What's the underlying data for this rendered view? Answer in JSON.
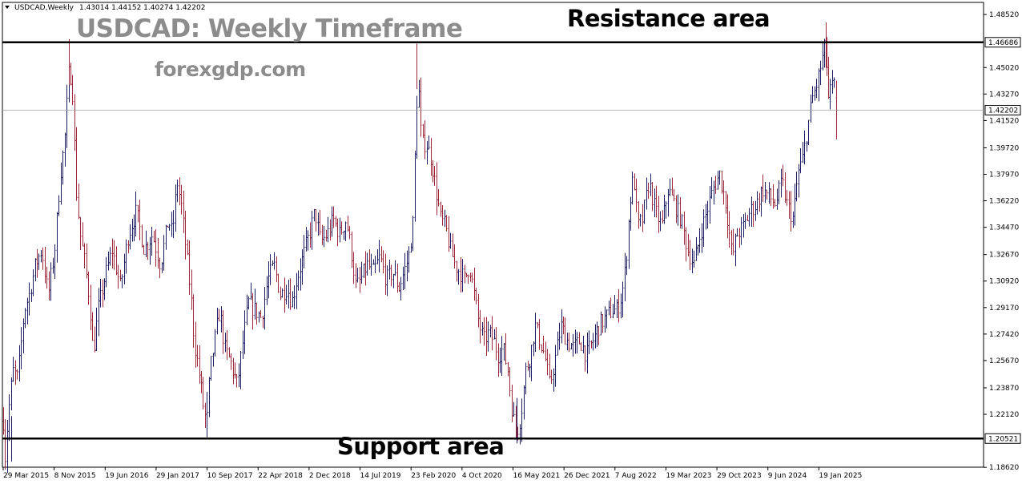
{
  "header": {
    "symbol": "USDCAD,Weekly",
    "ohlc": "1.43014 1.44152 1.40274 1.42202"
  },
  "annotations": {
    "title": "USDCAD: Weekly Timeframe",
    "website": "forexgdp.com",
    "resistance_label": "Resistance area",
    "support_label": "Support area"
  },
  "colors": {
    "up_bar": "#1e1e64",
    "down_bar": "#a0283c",
    "level_line": "#000000",
    "current_line": "#a0a0a0",
    "frame": "#000000",
    "text_gray": "#8c8c8c"
  },
  "chart_data": {
    "type": "ohlc",
    "title": "USDCAD: Weekly Timeframe",
    "xlabel": "",
    "ylabel": "",
    "ylim": [
      1.1863,
      1.4932
    ],
    "grid": false,
    "price_ticks": [
      "1.48520",
      "1.45020",
      "1.43270",
      "1.41520",
      "1.39720",
      "1.37970",
      "1.36220",
      "1.34470",
      "1.32670",
      "1.30920",
      "1.29170",
      "1.27420",
      "1.25670",
      "1.23870",
      "1.22120",
      "1.18620"
    ],
    "date_ticks": [
      "29 Mar 2015",
      "8 Nov 2015",
      "19 Jun 2016",
      "29 Jan 2017",
      "10 Sep 2017",
      "22 Apr 2018",
      "2 Dec 2018",
      "14 Jul 2019",
      "23 Feb 2020",
      "4 Oct 2020",
      "16 May 2021",
      "26 Dec 2021",
      "7 Aug 2022",
      "19 Mar 2023",
      "29 Oct 2023",
      "9 Jun 2024",
      "19 Jan 2025"
    ],
    "levels": [
      {
        "name": "Resistance area",
        "value": 1.46686,
        "label": "1.46686"
      },
      {
        "name": "Support area",
        "value": 1.20521,
        "label": "1.20521"
      }
    ],
    "current_price": {
      "value": 1.42202,
      "label": "1.42202"
    },
    "last_bar": {
      "open": 1.43014,
      "high": 1.44152,
      "low": 1.40274,
      "close": 1.42202
    },
    "path_points": [
      [
        0,
        1.28
      ],
      [
        3,
        1.23
      ],
      [
        6,
        1.19
      ],
      [
        10,
        1.22
      ],
      [
        16,
        1.25
      ],
      [
        22,
        1.245
      ],
      [
        30,
        1.29
      ],
      [
        36,
        1.3
      ],
      [
        44,
        1.32
      ],
      [
        52,
        1.33
      ],
      [
        60,
        1.3
      ],
      [
        68,
        1.33
      ],
      [
        75,
        1.38
      ],
      [
        80,
        1.4
      ],
      [
        86,
        1.45
      ],
      [
        90,
        1.44
      ],
      [
        95,
        1.37
      ],
      [
        100,
        1.34
      ],
      [
        106,
        1.32
      ],
      [
        112,
        1.295
      ],
      [
        116,
        1.26
      ],
      [
        122,
        1.29
      ],
      [
        130,
        1.31
      ],
      [
        140,
        1.33
      ],
      [
        150,
        1.305
      ],
      [
        160,
        1.34
      ],
      [
        170,
        1.355
      ],
      [
        180,
        1.33
      ],
      [
        190,
        1.34
      ],
      [
        200,
        1.32
      ],
      [
        210,
        1.35
      ],
      [
        215,
        1.34
      ],
      [
        221,
        1.375
      ],
      [
        226,
        1.36
      ],
      [
        232,
        1.33
      ],
      [
        238,
        1.3
      ],
      [
        242,
        1.27
      ],
      [
        248,
        1.25
      ],
      [
        254,
        1.225
      ],
      [
        258,
        1.215
      ],
      [
        262,
        1.25
      ],
      [
        268,
        1.27
      ],
      [
        274,
        1.29
      ],
      [
        280,
        1.265
      ],
      [
        288,
        1.255
      ],
      [
        296,
        1.24
      ],
      [
        302,
        1.265
      ],
      [
        310,
        1.295
      ],
      [
        318,
        1.29
      ],
      [
        326,
        1.285
      ],
      [
        334,
        1.31
      ],
      [
        342,
        1.32
      ],
      [
        350,
        1.3
      ],
      [
        358,
        1.305
      ],
      [
        364,
        1.295
      ],
      [
        370,
        1.31
      ],
      [
        378,
        1.325
      ],
      [
        386,
        1.34
      ],
      [
        393,
        1.355
      ],
      [
        400,
        1.335
      ],
      [
        408,
        1.34
      ],
      [
        416,
        1.35
      ],
      [
        424,
        1.34
      ],
      [
        432,
        1.35
      ],
      [
        438,
        1.33
      ],
      [
        444,
        1.305
      ],
      [
        450,
        1.31
      ],
      [
        458,
        1.32
      ],
      [
        466,
        1.315
      ],
      [
        474,
        1.325
      ],
      [
        482,
        1.31
      ],
      [
        490,
        1.315
      ],
      [
        498,
        1.305
      ],
      [
        504,
        1.315
      ],
      [
        510,
        1.325
      ],
      [
        516,
        1.35
      ],
      [
        519,
        1.42
      ],
      [
        522,
        1.44
      ],
      [
        526,
        1.4
      ],
      [
        532,
        1.4
      ],
      [
        538,
        1.39
      ],
      [
        544,
        1.37
      ],
      [
        550,
        1.35
      ],
      [
        556,
        1.345
      ],
      [
        562,
        1.33
      ],
      [
        568,
        1.32
      ],
      [
        574,
        1.315
      ],
      [
        580,
        1.31
      ],
      [
        586,
        1.32
      ],
      [
        592,
        1.3
      ],
      [
        598,
        1.28
      ],
      [
        604,
        1.27
      ],
      [
        610,
        1.275
      ],
      [
        616,
        1.27
      ],
      [
        622,
        1.26
      ],
      [
        628,
        1.265
      ],
      [
        634,
        1.25
      ],
      [
        640,
        1.22
      ],
      [
        645,
        1.21
      ],
      [
        650,
        1.22
      ],
      [
        656,
        1.25
      ],
      [
        662,
        1.26
      ],
      [
        668,
        1.28
      ],
      [
        674,
        1.27
      ],
      [
        680,
        1.26
      ],
      [
        686,
        1.24
      ],
      [
        692,
        1.255
      ],
      [
        700,
        1.28
      ],
      [
        708,
        1.27
      ],
      [
        716,
        1.265
      ],
      [
        724,
        1.27
      ],
      [
        732,
        1.26
      ],
      [
        740,
        1.27
      ],
      [
        748,
        1.28
      ],
      [
        756,
        1.285
      ],
      [
        764,
        1.29
      ],
      [
        770,
        1.29
      ],
      [
        776,
        1.3
      ],
      [
        781,
        1.32
      ],
      [
        786,
        1.36
      ],
      [
        791,
        1.38
      ],
      [
        796,
        1.345
      ],
      [
        802,
        1.35
      ],
      [
        810,
        1.375
      ],
      [
        818,
        1.355
      ],
      [
        826,
        1.345
      ],
      [
        834,
        1.37
      ],
      [
        842,
        1.36
      ],
      [
        850,
        1.35
      ],
      [
        858,
        1.33
      ],
      [
        866,
        1.32
      ],
      [
        874,
        1.34
      ],
      [
        882,
        1.355
      ],
      [
        890,
        1.37
      ],
      [
        898,
        1.38
      ],
      [
        906,
        1.36
      ],
      [
        914,
        1.325
      ],
      [
        920,
        1.34
      ],
      [
        928,
        1.345
      ],
      [
        936,
        1.355
      ],
      [
        944,
        1.36
      ],
      [
        952,
        1.37
      ],
      [
        960,
        1.365
      ],
      [
        968,
        1.36
      ],
      [
        976,
        1.375
      ],
      [
        982,
        1.36
      ],
      [
        990,
        1.35
      ],
      [
        996,
        1.38
      ],
      [
        1002,
        1.39
      ],
      [
        1008,
        1.41
      ],
      [
        1014,
        1.43
      ],
      [
        1020,
        1.44
      ],
      [
        1026,
        1.455
      ],
      [
        1030,
        1.465
      ],
      [
        1034,
        1.43
      ],
      [
        1040,
        1.44
      ],
      [
        1046,
        1.4301
      ]
    ]
  }
}
